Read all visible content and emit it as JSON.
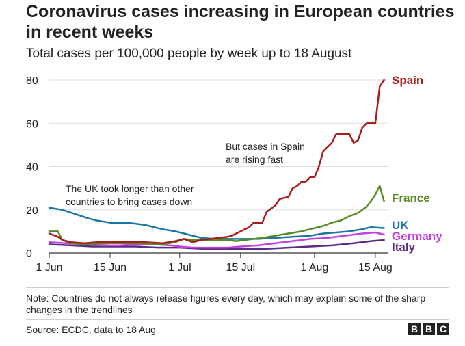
{
  "title": "Coronavirus cases increasing in European countries in recent weeks",
  "subtitle": "Total cases per 100,000 people by week up to 18 August",
  "note": "Note: Countries do not always release figures every day, which may explain some of the sharp changes in the trendlines",
  "source": "Source: ECDC, data to 18 Aug",
  "logo_text": "BBC",
  "chart_data": {
    "type": "line",
    "title": "Total cases per 100,000 people by week up to 18 August",
    "xlabel": "",
    "ylabel": "",
    "x_unit": "days since 1 Jun",
    "xlim": [
      0,
      78
    ],
    "ylim": [
      0,
      80
    ],
    "y_ticks": [
      0,
      20,
      40,
      60,
      80
    ],
    "x_ticks": [
      {
        "value": 0,
        "label": "1 Jun"
      },
      {
        "value": 14,
        "label": "15 Jun"
      },
      {
        "value": 30,
        "label": "1 Jul"
      },
      {
        "value": 44,
        "label": "15 Jul"
      },
      {
        "value": 61,
        "label": "1 Aug"
      },
      {
        "value": 75,
        "label": "15 Aug"
      }
    ],
    "grid": true,
    "series": [
      {
        "name": "Spain",
        "color": "#a81c1c",
        "points": [
          [
            0,
            9
          ],
          [
            2,
            7.5
          ],
          [
            3,
            6
          ],
          [
            5,
            5
          ],
          [
            8,
            4.5
          ],
          [
            11,
            5
          ],
          [
            14,
            5
          ],
          [
            18,
            5
          ],
          [
            22,
            5
          ],
          [
            26,
            4.5
          ],
          [
            29,
            5.5
          ],
          [
            31,
            6.5
          ],
          [
            33,
            5
          ],
          [
            35,
            6
          ],
          [
            37,
            6.5
          ],
          [
            39,
            7
          ],
          [
            41,
            7.5
          ],
          [
            42,
            8
          ],
          [
            44,
            10
          ],
          [
            46,
            12
          ],
          [
            47,
            14
          ],
          [
            49,
            14
          ],
          [
            50,
            19
          ],
          [
            52,
            22
          ],
          [
            53,
            25
          ],
          [
            55,
            26
          ],
          [
            56,
            30
          ],
          [
            57,
            31
          ],
          [
            58,
            33
          ],
          [
            59,
            33
          ],
          [
            60,
            35
          ],
          [
            61,
            35
          ],
          [
            62,
            40
          ],
          [
            63,
            47
          ],
          [
            65,
            51
          ],
          [
            66,
            55
          ],
          [
            69,
            55
          ],
          [
            70,
            51
          ],
          [
            71,
            52
          ],
          [
            72,
            58
          ],
          [
            73,
            60
          ],
          [
            75,
            60
          ],
          [
            76,
            77
          ],
          [
            77,
            80
          ]
        ]
      },
      {
        "name": "France",
        "color": "#588a26",
        "points": [
          [
            0,
            10
          ],
          [
            2,
            10
          ],
          [
            3,
            6
          ],
          [
            5,
            4.5
          ],
          [
            8,
            4
          ],
          [
            14,
            4.5
          ],
          [
            20,
            4.5
          ],
          [
            26,
            4
          ],
          [
            29,
            5
          ],
          [
            31,
            6.5
          ],
          [
            33,
            6
          ],
          [
            37,
            6
          ],
          [
            41,
            6
          ],
          [
            43,
            5.5
          ],
          [
            45,
            6
          ],
          [
            47,
            6.5
          ],
          [
            49,
            7
          ],
          [
            52,
            8
          ],
          [
            55,
            9
          ],
          [
            58,
            10
          ],
          [
            61,
            11.5
          ],
          [
            63,
            12.5
          ],
          [
            65,
            14
          ],
          [
            67,
            15
          ],
          [
            69,
            17
          ],
          [
            71,
            18.5
          ],
          [
            73,
            21.5
          ],
          [
            74,
            24
          ],
          [
            75,
            27
          ],
          [
            76,
            31
          ],
          [
            77,
            24
          ]
        ]
      },
      {
        "name": "UK",
        "color": "#1a76a3",
        "points": [
          [
            0,
            21
          ],
          [
            3,
            20
          ],
          [
            6,
            18
          ],
          [
            9,
            16
          ],
          [
            11,
            15
          ],
          [
            14,
            14
          ],
          [
            18,
            14
          ],
          [
            22,
            13
          ],
          [
            26,
            11
          ],
          [
            29,
            10
          ],
          [
            31,
            9
          ],
          [
            33,
            8
          ],
          [
            35,
            7
          ],
          [
            38,
            6.5
          ],
          [
            41,
            6.5
          ],
          [
            44,
            6.5
          ],
          [
            48,
            6.5
          ],
          [
            52,
            7
          ],
          [
            56,
            7.5
          ],
          [
            60,
            8
          ],
          [
            63,
            9
          ],
          [
            66,
            9.5
          ],
          [
            69,
            10
          ],
          [
            72,
            11
          ],
          [
            74,
            12
          ],
          [
            77,
            11.5
          ]
        ]
      },
      {
        "name": "Germany",
        "color": "#c340e0",
        "points": [
          [
            0,
            5
          ],
          [
            4,
            4.5
          ],
          [
            8,
            4
          ],
          [
            12,
            3.5
          ],
          [
            16,
            3.5
          ],
          [
            20,
            4
          ],
          [
            24,
            4
          ],
          [
            28,
            3.5
          ],
          [
            30,
            3
          ],
          [
            33,
            2.5
          ],
          [
            37,
            2.5
          ],
          [
            41,
            2.5
          ],
          [
            44,
            3
          ],
          [
            48,
            3.5
          ],
          [
            52,
            4.5
          ],
          [
            56,
            5.5
          ],
          [
            60,
            6.5
          ],
          [
            64,
            7
          ],
          [
            68,
            8
          ],
          [
            72,
            9
          ],
          [
            75,
            9.5
          ],
          [
            77,
            8.5
          ]
        ]
      },
      {
        "name": "Italy",
        "color": "#5b2b86",
        "points": [
          [
            0,
            4
          ],
          [
            5,
            3.5
          ],
          [
            10,
            3
          ],
          [
            15,
            3
          ],
          [
            20,
            3
          ],
          [
            25,
            2.5
          ],
          [
            30,
            2.5
          ],
          [
            35,
            2
          ],
          [
            40,
            2
          ],
          [
            45,
            2
          ],
          [
            50,
            2
          ],
          [
            55,
            2.5
          ],
          [
            60,
            3
          ],
          [
            65,
            3.5
          ],
          [
            70,
            4.5
          ],
          [
            74,
            5.5
          ],
          [
            77,
            6
          ]
        ]
      }
    ],
    "annotations": [
      {
        "text": "The UK took longer than other countries to bring cases down"
      },
      {
        "text": "But cases in Spain are rising fast"
      }
    ]
  }
}
